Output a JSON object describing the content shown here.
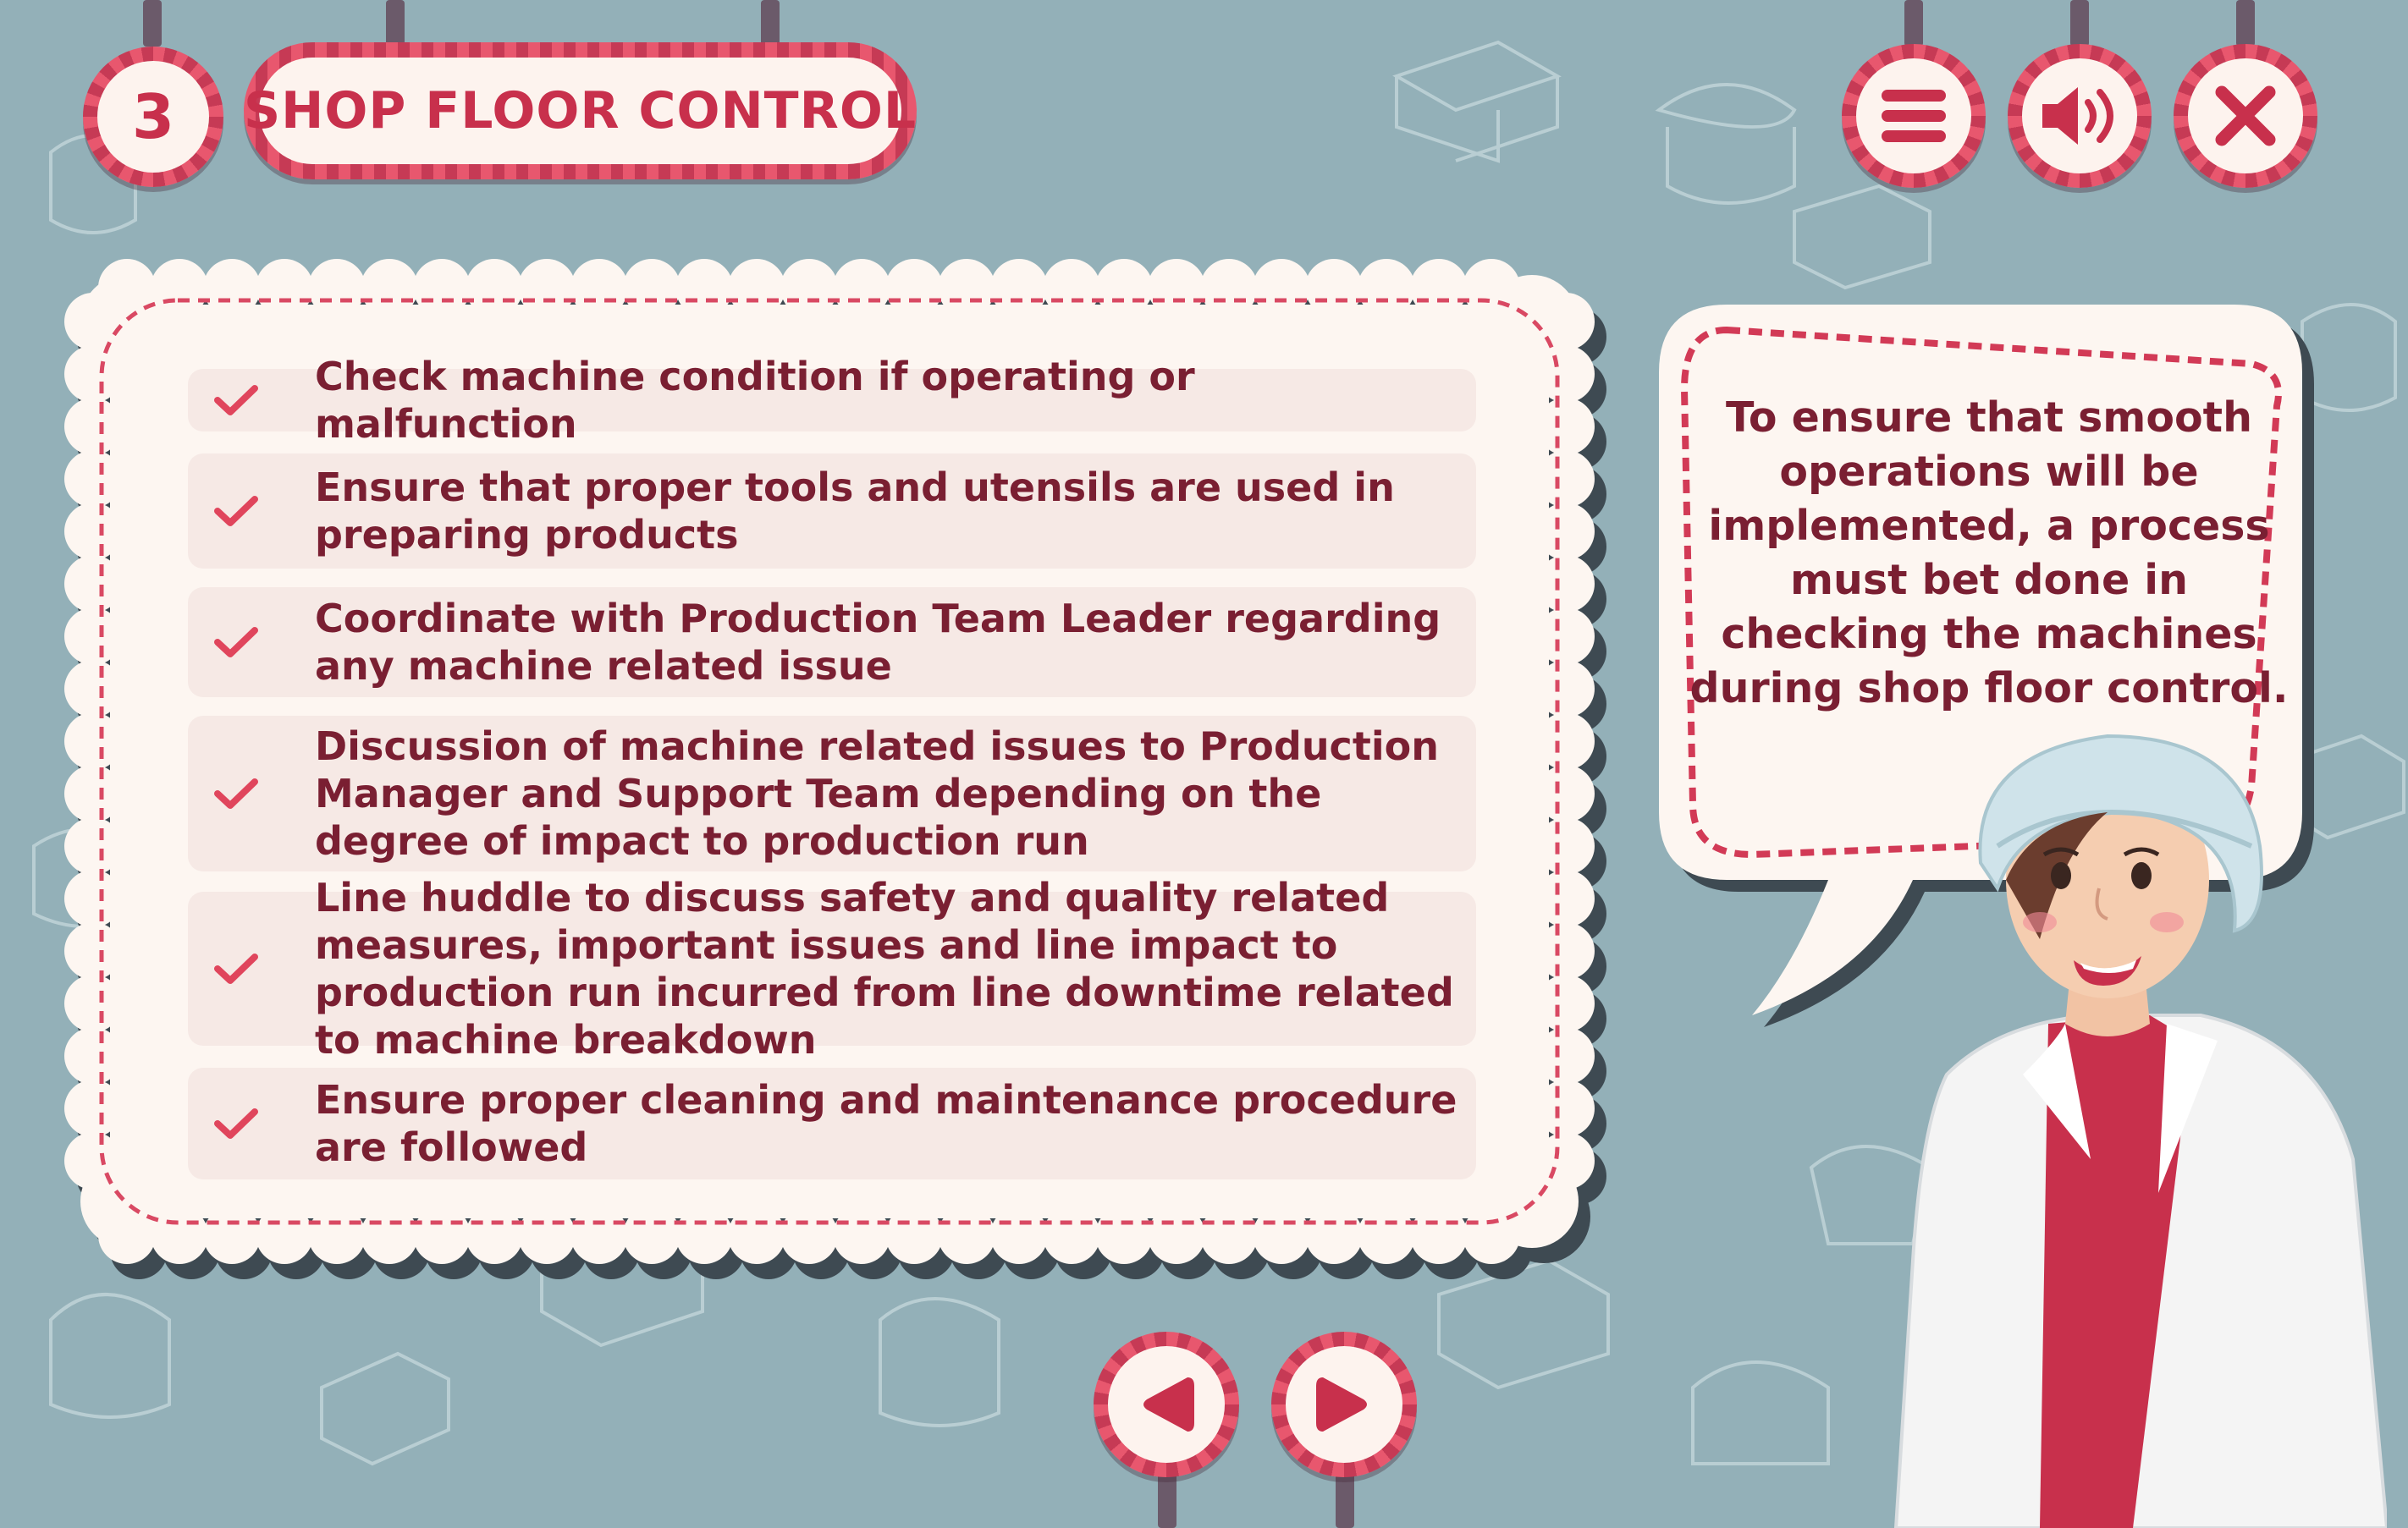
{
  "header": {
    "step_number": "3",
    "title": "SHOP FLOOR CONTROL"
  },
  "top_controls": {
    "menu_icon": "hamburger-icon",
    "sound_icon": "speaker-icon",
    "close_icon": "close-icon"
  },
  "checklist": {
    "check_icon": "checkmark-icon",
    "items": [
      {
        "text": "Check machine condition if operating or malfunction"
      },
      {
        "text": "Ensure that proper tools and utensils are used in preparing products"
      },
      {
        "text": "Coordinate with Production Team Leader regarding any machine related issue"
      },
      {
        "text": "Discussion of machine related issues to Production Manager and  Support Team depending on the degree of impact to production run"
      },
      {
        "text": "Line huddle to discuss safety and quality related measures, important issues and line impact to production run incurred from line downtime related to machine breakdown"
      },
      {
        "text": "Ensure proper cleaning and maintenance procedure are followed"
      }
    ]
  },
  "speech_bubble": {
    "text": "To ensure that smooth operations will be implemented, a process must bet done in checking the machines during shop floor control."
  },
  "navigation": {
    "prev_icon": "play-left-icon",
    "next_icon": "play-right-icon"
  },
  "colors": {
    "background": "#93b0b8",
    "accent_red": "#c8304c",
    "text_maroon": "#7a1f32",
    "card_cream": "#fdf6f1"
  }
}
